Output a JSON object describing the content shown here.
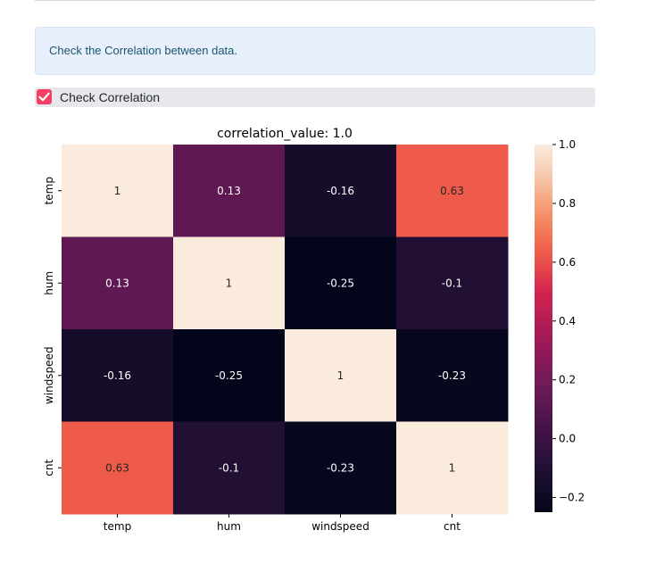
{
  "info": {
    "text": "Check the Correlation between data."
  },
  "checkbox": {
    "label": "Check Correlation",
    "checked": true
  },
  "colors": {
    "info_bg": "#e8f1fb",
    "info_text": "#1c5470",
    "checkbox_accent": "#f43f64"
  },
  "chart_data": {
    "type": "heatmap",
    "title": "correlation_value: 1.0",
    "x_labels": [
      "temp",
      "hum",
      "windspeed",
      "cnt"
    ],
    "y_labels": [
      "temp",
      "hum",
      "windspeed",
      "cnt"
    ],
    "values": [
      [
        1,
        0.13,
        -0.16,
        0.63
      ],
      [
        0.13,
        1,
        -0.25,
        -0.1
      ],
      [
        -0.16,
        -0.25,
        1,
        -0.23
      ],
      [
        0.63,
        -0.1,
        -0.23,
        1
      ]
    ],
    "annotations": [
      [
        "1",
        "0.13",
        "-0.16",
        "0.63"
      ],
      [
        "0.13",
        "1",
        "-0.25",
        "-0.1"
      ],
      [
        "-0.16",
        "-0.25",
        "1",
        "-0.23"
      ],
      [
        "0.63",
        "-0.1",
        "-0.23",
        "1"
      ]
    ],
    "colormap": "rocket",
    "vmin": -0.25,
    "vmax": 1.0,
    "colorbar_ticks": [
      1.0,
      0.8,
      0.6,
      0.4,
      0.2,
      0.0,
      -0.2
    ],
    "colorbar_tick_labels": [
      "1.0",
      "0.8",
      "0.6",
      "0.4",
      "0.2",
      "0.0",
      "−0.2"
    ]
  }
}
